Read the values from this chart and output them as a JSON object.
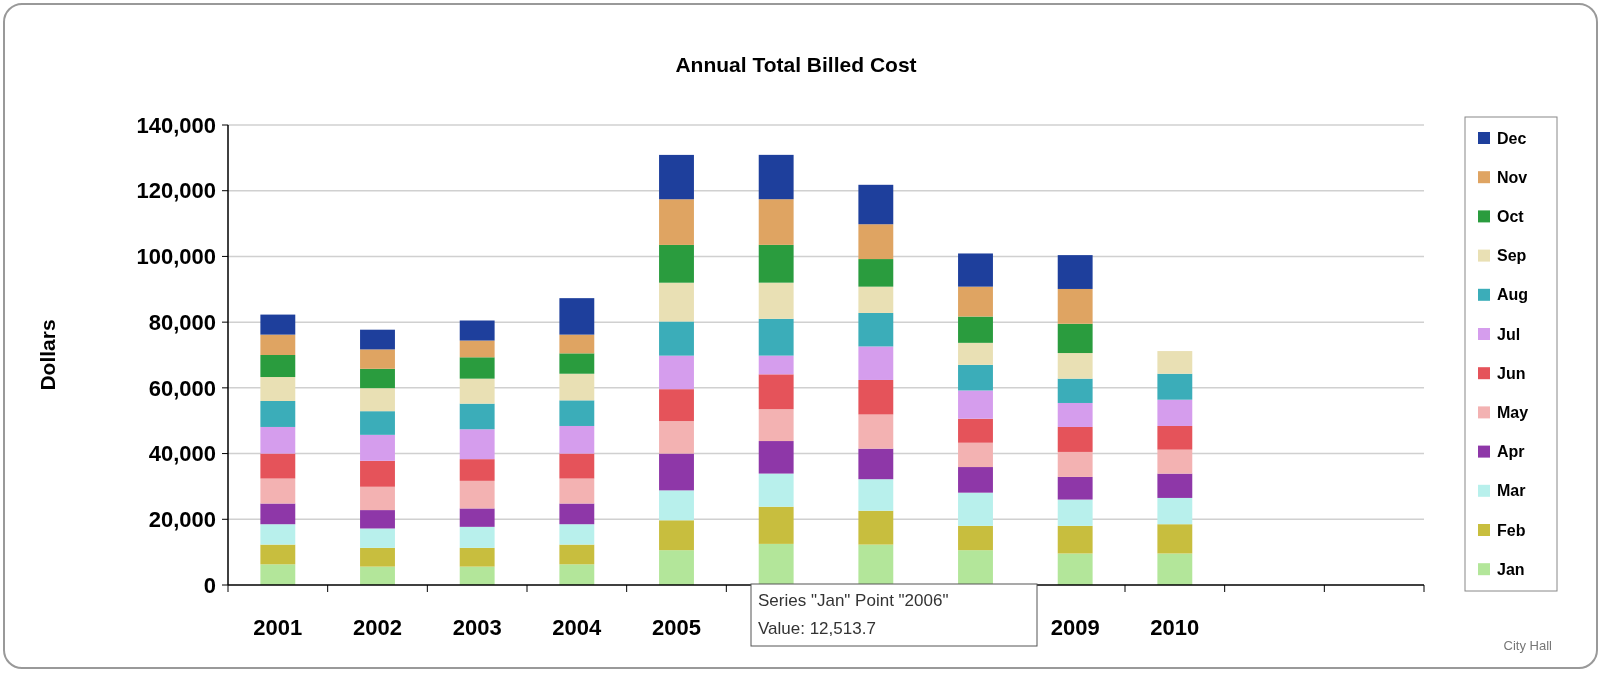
{
  "chart_data": {
    "type": "bar",
    "title": "Annual Total Billed Cost",
    "ylabel": "Dollars",
    "stacked": true,
    "categories": [
      "2001",
      "2002",
      "2003",
      "2004",
      "2005",
      null,
      null,
      null,
      "2009",
      "2010",
      null,
      null
    ],
    "series": [
      {
        "name": "Jan",
        "color": "#b3e69a",
        "values": [
          6300,
          5600,
          5600,
          6300,
          10600,
          12513.7,
          12300,
          10600,
          9600,
          9600,
          null,
          null
        ]
      },
      {
        "name": "Feb",
        "color": "#c8be3e",
        "values": [
          6000,
          5700,
          5700,
          6000,
          9100,
          11300,
          10300,
          7400,
          8400,
          8900,
          null,
          null
        ]
      },
      {
        "name": "Mar",
        "color": "#b8f0ec",
        "values": [
          6200,
          5900,
          6400,
          6200,
          9100,
          10100,
          9600,
          10100,
          8000,
          8000,
          null,
          null
        ]
      },
      {
        "name": "Apr",
        "color": "#8e37a8",
        "values": [
          6300,
          5600,
          5600,
          6300,
          11200,
          9900,
          9300,
          7800,
          6900,
          7400,
          null,
          null
        ]
      },
      {
        "name": "May",
        "color": "#f3b2b2",
        "values": [
          7600,
          7100,
          8400,
          7600,
          9900,
          9700,
          10400,
          7400,
          7600,
          7300,
          null,
          null
        ]
      },
      {
        "name": "Jun",
        "color": "#e5535a",
        "values": [
          7600,
          7900,
          6600,
          7600,
          9700,
          10600,
          10500,
          7300,
          7600,
          7200,
          null,
          null
        ]
      },
      {
        "name": "Jul",
        "color": "#d59ded",
        "values": [
          8100,
          7900,
          9100,
          8400,
          10200,
          5700,
          10200,
          8600,
          7300,
          8000,
          null,
          null
        ]
      },
      {
        "name": "Aug",
        "color": "#3badb9",
        "values": [
          7900,
          7200,
          7800,
          7800,
          10400,
          11200,
          10200,
          7800,
          7400,
          7900,
          null,
          null
        ]
      },
      {
        "name": "Sep",
        "color": "#e9e0b4",
        "values": [
          7300,
          7000,
          7600,
          8100,
          11800,
          11000,
          8000,
          6700,
          7800,
          6900,
          null,
          null
        ]
      },
      {
        "name": "Oct",
        "color": "#2a9c3e",
        "values": [
          6700,
          5900,
          6500,
          6200,
          11500,
          11500,
          8400,
          8000,
          8900,
          null,
          null,
          null
        ]
      },
      {
        "name": "Nov",
        "color": "#dfa462",
        "values": [
          6200,
          5900,
          5100,
          5700,
          13900,
          13900,
          10600,
          9100,
          10600,
          null,
          null,
          null
        ]
      },
      {
        "name": "Dec",
        "color": "#1e3f9c",
        "values": [
          6100,
          6000,
          6100,
          11100,
          13500,
          13500,
          12000,
          10100,
          10300,
          null,
          null,
          null
        ]
      }
    ],
    "ylim": [
      0,
      140000
    ],
    "yticks": [
      0,
      {
        "value": 20000,
        "label": "20,000"
      },
      {
        "value": 40000,
        "label": "40,000"
      },
      {
        "value": 60000,
        "label": "60,000"
      },
      {
        "value": 80000,
        "label": "80,000"
      },
      {
        "value": 100000,
        "label": "100,000"
      },
      {
        "value": 120000,
        "label": "120,000"
      },
      {
        "value": 140000,
        "label": "140,000"
      }
    ],
    "grid": "y",
    "legend": "right",
    "annotations": [
      "Series \"Jan\" Point \"2006\"",
      "Value: 12,513.7",
      "City Hall"
    ]
  }
}
